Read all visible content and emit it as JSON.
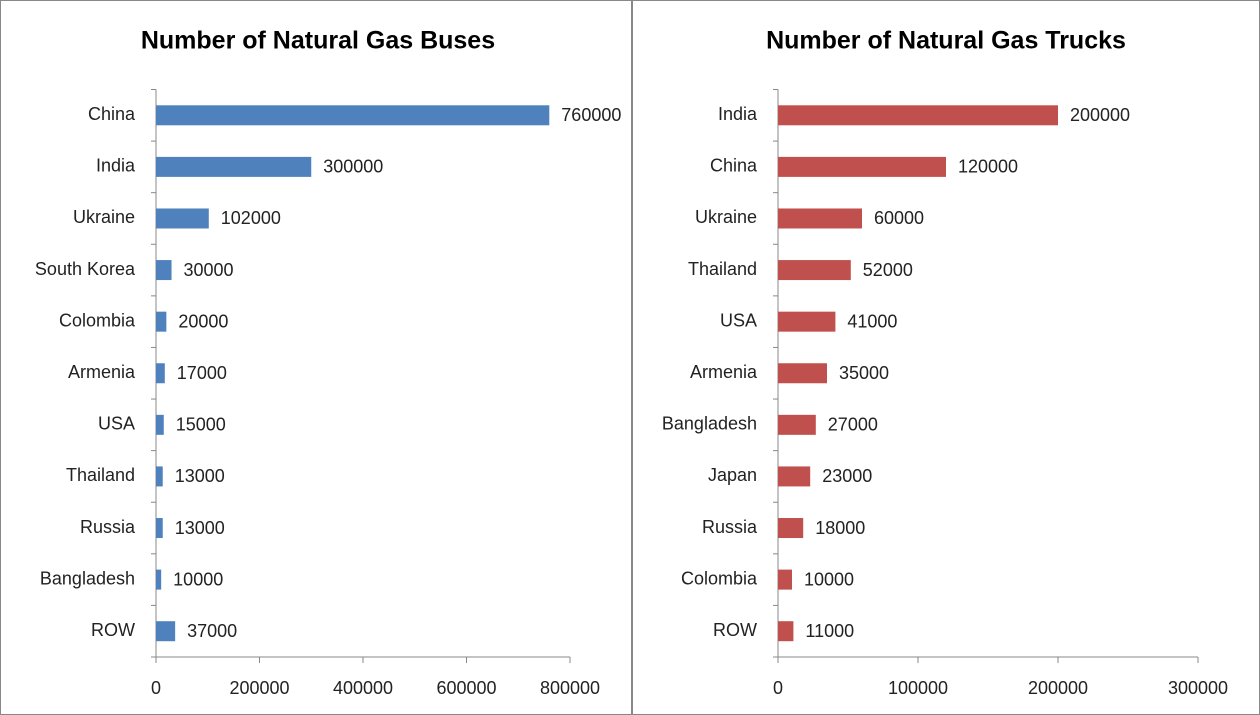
{
  "chart_data": [
    {
      "type": "bar",
      "orientation": "horizontal",
      "title": "Number of Natural Gas Buses",
      "categories": [
        "China",
        "India",
        "Ukraine",
        "South Korea",
        "Colombia",
        "Armenia",
        "USA",
        "Thailand",
        "Russia",
        "Bangladesh",
        "ROW"
      ],
      "values": [
        760000,
        300000,
        102000,
        30000,
        20000,
        17000,
        15000,
        13000,
        13000,
        10000,
        37000
      ],
      "color": "#4f81bd",
      "xlim": [
        0,
        800000
      ],
      "xticks": [
        0,
        200000,
        400000,
        600000,
        800000
      ]
    },
    {
      "type": "bar",
      "orientation": "horizontal",
      "title": "Number of Natural Gas Trucks",
      "categories": [
        "India",
        "China",
        "Ukraine",
        "Thailand",
        "USA",
        "Armenia",
        "Bangladesh",
        "Japan",
        "Russia",
        "Colombia",
        "ROW"
      ],
      "values": [
        200000,
        120000,
        60000,
        52000,
        41000,
        35000,
        27000,
        23000,
        18000,
        10000,
        11000
      ],
      "color": "#c0504d",
      "xlim": [
        0,
        300000
      ],
      "xticks": [
        0,
        100000,
        200000,
        300000
      ]
    }
  ]
}
